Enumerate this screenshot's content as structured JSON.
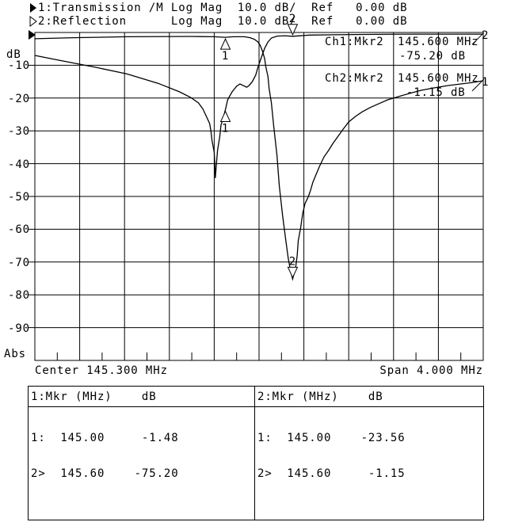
{
  "header": {
    "channel1_line": "1:Transmission /M Log Mag  10.0 dB/  Ref   0.00 dB",
    "channel2_line": "2:Reflection      Log Mag  10.0 dB/  Ref   0.00 dB"
  },
  "y_axis_unit": "dB",
  "y_axis_mode": "Abs",
  "readout": {
    "ch1": {
      "label": "Ch1:Mkr2",
      "freq": "145.600 MHz",
      "value": "-75.20 dB"
    },
    "ch2": {
      "label": "Ch2:Mkr2",
      "freq": "145.600 MHz",
      "value": "-1.15 dB"
    }
  },
  "x_axis_labels": {
    "center": "Center 145.300 MHz",
    "span": "Span 4.000 MHz"
  },
  "marker_table": {
    "ch1": {
      "header": "1:Mkr (MHz)    dB",
      "rows": [
        "1:  145.00     -1.48",
        "2>  145.60    -75.20"
      ]
    },
    "ch2": {
      "header": "2:Mkr (MHz)    dB",
      "rows": [
        "1:  145.00    -23.56",
        "2>  145.60     -1.15"
      ]
    }
  },
  "colors": {
    "foreground": "#000000",
    "background": "#ffffff"
  },
  "chart_data": {
    "type": "line",
    "title": "",
    "x_axis": {
      "center_mhz": 145.3,
      "span_mhz": 4.0,
      "min_mhz": 143.3,
      "max_mhz": 147.3,
      "divisions": 10
    },
    "y_axis": {
      "unit": "dB",
      "mode": "Abs",
      "ref_db": 0,
      "db_per_div": 10,
      "min_db": -100,
      "max_db": 0,
      "divisions": 10,
      "tick_labels": [
        "-10",
        "-20",
        "-30",
        "-40",
        "-50",
        "-60",
        "-70",
        "-80",
        "-90"
      ]
    },
    "grid": true,
    "series": [
      {
        "name": "Transmission",
        "trace_number": 1,
        "end_label": "1",
        "points_mhz_db": [
          [
            143.3,
            -1.9
          ],
          [
            143.64,
            -1.6
          ],
          [
            144.12,
            -1.3
          ],
          [
            144.69,
            -1.2
          ],
          [
            144.9,
            -1.3
          ],
          [
            145.0,
            -1.48
          ],
          [
            145.07,
            -1.3
          ],
          [
            145.17,
            -1.3
          ],
          [
            145.22,
            -1.6
          ],
          [
            145.26,
            -2.1
          ],
          [
            145.29,
            -2.9
          ],
          [
            145.31,
            -3.9
          ],
          [
            145.33,
            -5.6
          ],
          [
            145.35,
            -8.0
          ],
          [
            145.36,
            -10.4
          ],
          [
            145.38,
            -13.5
          ],
          [
            145.39,
            -17.1
          ],
          [
            145.41,
            -21.5
          ],
          [
            145.43,
            -28.3
          ],
          [
            145.46,
            -37.4
          ],
          [
            145.48,
            -46.6
          ],
          [
            145.51,
            -55.8
          ],
          [
            145.54,
            -63.8
          ],
          [
            145.56,
            -68.8
          ],
          [
            145.58,
            -72.5
          ],
          [
            145.6,
            -75.2
          ],
          [
            145.625,
            -72.0
          ],
          [
            145.64,
            -68.1
          ],
          [
            145.65,
            -63.5
          ],
          [
            145.67,
            -59.7
          ],
          [
            145.69,
            -55.1
          ],
          [
            145.71,
            -52.2
          ],
          [
            145.74,
            -50.0
          ],
          [
            145.76,
            -48.1
          ],
          [
            145.78,
            -45.7
          ],
          [
            145.81,
            -43.2
          ],
          [
            145.84,
            -40.8
          ],
          [
            145.88,
            -37.9
          ],
          [
            145.92,
            -36.0
          ],
          [
            145.96,
            -33.8
          ],
          [
            146.01,
            -31.4
          ],
          [
            146.05,
            -29.5
          ],
          [
            146.1,
            -27.3
          ],
          [
            146.16,
            -25.6
          ],
          [
            146.22,
            -24.2
          ],
          [
            146.29,
            -22.9
          ],
          [
            146.37,
            -21.7
          ],
          [
            146.45,
            -20.5
          ],
          [
            146.54,
            -19.6
          ],
          [
            146.64,
            -18.6
          ],
          [
            146.75,
            -17.6
          ],
          [
            146.86,
            -16.9
          ],
          [
            146.98,
            -16.2
          ],
          [
            147.1,
            -15.7
          ],
          [
            147.22,
            -15.2
          ],
          [
            147.3,
            -14.7
          ]
        ]
      },
      {
        "name": "Reflection",
        "trace_number": 2,
        "end_label": "2",
        "points_mhz_db": [
          [
            143.3,
            -7.0
          ],
          [
            143.55,
            -8.7
          ],
          [
            143.84,
            -10.6
          ],
          [
            144.12,
            -12.6
          ],
          [
            144.4,
            -15.5
          ],
          [
            144.59,
            -18.1
          ],
          [
            144.69,
            -19.8
          ],
          [
            144.76,
            -21.5
          ],
          [
            144.8,
            -23.4
          ],
          [
            144.83,
            -25.6
          ],
          [
            144.86,
            -27.8
          ],
          [
            144.87,
            -30.0
          ],
          [
            144.88,
            -32.9
          ],
          [
            144.9,
            -36.5
          ],
          [
            144.905,
            -39.6
          ],
          [
            144.91,
            -44.4
          ],
          [
            144.92,
            -40.1
          ],
          [
            144.93,
            -36.0
          ],
          [
            144.95,
            -31.6
          ],
          [
            144.96,
            -28.3
          ],
          [
            144.98,
            -26.1
          ],
          [
            145.0,
            -23.56
          ],
          [
            145.02,
            -20.5
          ],
          [
            145.06,
            -18.1
          ],
          [
            145.1,
            -16.4
          ],
          [
            145.13,
            -15.7
          ],
          [
            145.16,
            -16.2
          ],
          [
            145.19,
            -16.7
          ],
          [
            145.21,
            -16.2
          ],
          [
            145.24,
            -15.0
          ],
          [
            145.27,
            -13.0
          ],
          [
            145.29,
            -10.6
          ],
          [
            145.32,
            -7.7
          ],
          [
            145.35,
            -4.8
          ],
          [
            145.38,
            -2.9
          ],
          [
            145.41,
            -1.7
          ],
          [
            145.46,
            -1.1
          ],
          [
            145.53,
            -1.0
          ],
          [
            145.6,
            -1.15
          ],
          [
            145.75,
            -0.8
          ],
          [
            145.96,
            -0.7
          ],
          [
            146.24,
            -0.6
          ],
          [
            146.59,
            -0.5
          ],
          [
            146.95,
            -0.5
          ],
          [
            147.3,
            -0.5
          ]
        ]
      }
    ],
    "markers": [
      {
        "label": "1",
        "series": "Transmission",
        "mhz": 145.0,
        "db": -1.48,
        "pointer": "up"
      },
      {
        "label": "1",
        "series": "Reflection",
        "mhz": 145.0,
        "db": -23.56,
        "pointer": "up"
      },
      {
        "label": "2",
        "series": "Reflection",
        "mhz": 145.6,
        "db": -1.15,
        "pointer": "down"
      },
      {
        "label": "2",
        "series": "Transmission",
        "mhz": 145.6,
        "db": -75.2,
        "pointer": "down"
      }
    ]
  }
}
